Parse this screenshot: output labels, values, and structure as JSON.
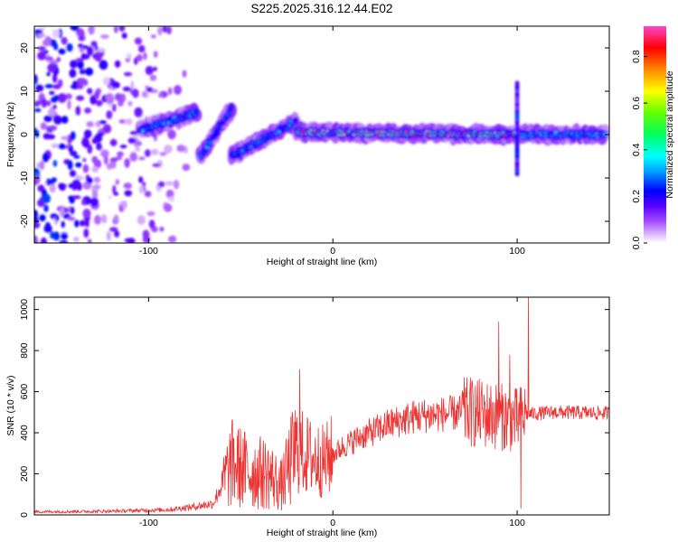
{
  "title": "S225.2025.316.12.44.E02",
  "chart_data": [
    {
      "type": "heatmap",
      "xlabel": "Height of straight line (km)",
      "ylabel": "Frequency (Hz)",
      "xlim": [
        -162,
        150
      ],
      "ylim": [
        -25,
        25
      ],
      "x_ticks": [
        -100,
        0,
        100
      ],
      "y_ticks": [
        -20,
        -10,
        0,
        10,
        20
      ],
      "colorbar": {
        "label": "Normalized spectral amplitude",
        "range": [
          0,
          0.93
        ],
        "ticks": [
          0.0,
          0.2,
          0.4,
          0.6,
          0.8
        ],
        "tick_labels": [
          "0.0",
          "0.2",
          "0.4",
          "0.6",
          "0.8"
        ]
      },
      "features": [
        {
          "name": "noise-region",
          "x_range": [
            -162,
            -75
          ],
          "freq_range": [
            -25,
            25
          ],
          "level": 0.15
        },
        {
          "name": "track-segment",
          "x_range": [
            -105,
            -74
          ],
          "freq_start": 1,
          "freq_end": 5,
          "level": 0.4
        },
        {
          "name": "track-segment",
          "x_range": [
            -72,
            -55
          ],
          "freq_start": -5,
          "freq_end": 6,
          "level": 0.35
        },
        {
          "name": "track-segment",
          "x_range": [
            -55,
            -20
          ],
          "freq_start": -5,
          "freq_end": 3,
          "level": 0.4
        },
        {
          "name": "track-segment",
          "x_range": [
            -20,
            100
          ],
          "freq_start": 0.5,
          "freq_end": 0,
          "level": 0.85
        },
        {
          "name": "track-segment",
          "x_range": [
            102,
            148
          ],
          "freq_start": 0,
          "freq_end": 0,
          "level": 0.5
        },
        {
          "name": "spike",
          "x": 100,
          "freq_range": [
            -9,
            12
          ],
          "level": 0.25
        }
      ]
    },
    {
      "type": "line",
      "xlabel": "Height of straight line (km)",
      "ylabel": "SNR (10 * v/v)",
      "xlim": [
        -162,
        150
      ],
      "ylim": [
        0,
        1060
      ],
      "x_ticks": [
        -100,
        0,
        100
      ],
      "y_ticks": [
        0,
        200,
        400,
        600,
        800,
        1000
      ],
      "color": "#ee3333",
      "series_envelope": [
        {
          "x": -162,
          "y": 15
        },
        {
          "x": -120,
          "y": 18
        },
        {
          "x": -90,
          "y": 25
        },
        {
          "x": -75,
          "y": 40
        },
        {
          "x": -65,
          "y": 55
        },
        {
          "x": -55,
          "y": 250
        },
        {
          "x": -45,
          "y": 210
        },
        {
          "x": -35,
          "y": 200
        },
        {
          "x": -28,
          "y": 140
        },
        {
          "x": -20,
          "y": 320
        },
        {
          "x": -12,
          "y": 280
        },
        {
          "x": -5,
          "y": 260
        },
        {
          "x": 5,
          "y": 330
        },
        {
          "x": 15,
          "y": 380
        },
        {
          "x": 30,
          "y": 440
        },
        {
          "x": 45,
          "y": 480
        },
        {
          "x": 60,
          "y": 490
        },
        {
          "x": 75,
          "y": 500
        },
        {
          "x": 90,
          "y": 480
        },
        {
          "x": 100,
          "y": 460
        },
        {
          "x": 105,
          "y": 490
        },
        {
          "x": 120,
          "y": 500
        },
        {
          "x": 150,
          "y": 495
        }
      ],
      "spikes": [
        {
          "x": -54,
          "y": 370
        },
        {
          "x": -18,
          "y": 710
        },
        {
          "x": 72,
          "y": 620
        },
        {
          "x": 90,
          "y": 940
        },
        {
          "x": 96,
          "y": 780
        },
        {
          "x": 102,
          "y": 30
        },
        {
          "x": 106,
          "y": 1060
        }
      ]
    }
  ]
}
